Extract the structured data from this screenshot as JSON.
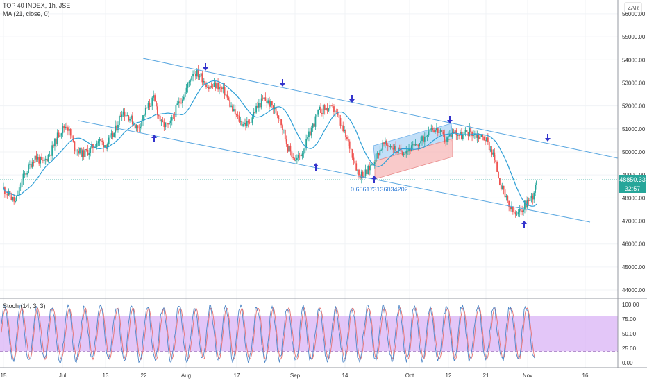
{
  "header": {
    "title": "TOP 40 INDEX, 1h, JSE",
    "ma_label": "MA (21, close, 0)",
    "currency": "ZAR"
  },
  "stoch_label": "Stoch (14, 3, 3)",
  "price_tag": "48850.33",
  "countdown_tag": "32:57",
  "fib_label": "0.656173136034202",
  "colors": {
    "up": "#26a69a",
    "down": "#ef5350",
    "ma": "#2e9fd6",
    "trendline": "#5aa7e0",
    "arrow": "#3333cc",
    "stoch_k": "#4f87c7",
    "stoch_d": "#e57373",
    "stoch_band": "#d9b3f5"
  },
  "chart_data": [
    {
      "type": "candlestick",
      "title": "TOP 40 INDEX, 1h, JSE",
      "y_ticks": [
        "44000.00",
        "45000.00",
        "46000.00",
        "47000.00",
        "48000.00",
        "49000.00",
        "50000.00",
        "51000.00",
        "52000.00",
        "53000.00",
        "54000.00",
        "55000.00",
        "56000.00"
      ],
      "ylim": [
        43700,
        56600
      ],
      "x_ticks": [
        "15",
        "Jul",
        "13",
        "22",
        "Aug",
        "17",
        "Sep",
        "14",
        "Oct",
        "12",
        "21",
        "Nov",
        "16"
      ],
      "last_price": 48850.33,
      "series": [
        {
          "type": "candles",
          "approx_close_path": [
            [
              0,
              48400
            ],
            [
              3,
              47800
            ],
            [
              5,
              48900
            ],
            [
              8,
              49800
            ],
            [
              10,
              49500
            ],
            [
              12,
              50000
            ],
            [
              14,
              50800
            ],
            [
              16,
              51200
            ],
            [
              18,
              50200
            ],
            [
              20,
              49900
            ],
            [
              22,
              50100
            ],
            [
              24,
              50500
            ],
            [
              26,
              50300
            ],
            [
              28,
              50800
            ],
            [
              30,
              51800
            ],
            [
              32,
              51500
            ],
            [
              34,
              51000
            ],
            [
              36,
              51800
            ],
            [
              38,
              52300
            ],
            [
              40,
              51200
            ],
            [
              42,
              51100
            ],
            [
              44,
              52000
            ],
            [
              46,
              52600
            ],
            [
              48,
              53500
            ],
            [
              50,
              53300
            ],
            [
              52,
              52800
            ],
            [
              54,
              52900
            ],
            [
              56,
              52600
            ],
            [
              58,
              51800
            ],
            [
              60,
              51300
            ],
            [
              62,
              51200
            ],
            [
              64,
              51900
            ],
            [
              66,
              52300
            ],
            [
              68,
              52000
            ],
            [
              70,
              51500
            ],
            [
              72,
              50200
            ],
            [
              74,
              49600
            ],
            [
              76,
              50100
            ],
            [
              78,
              51000
            ],
            [
              80,
              51800
            ],
            [
              82,
              51900
            ],
            [
              84,
              51800
            ],
            [
              86,
              50900
            ],
            [
              88,
              50100
            ],
            [
              90,
              49000
            ],
            [
              92,
              49100
            ],
            [
              94,
              49700
            ],
            [
              96,
              50300
            ],
            [
              98,
              50300
            ],
            [
              100,
              50000
            ],
            [
              102,
              50100
            ],
            [
              104,
              50200
            ],
            [
              106,
              50500
            ],
            [
              108,
              51100
            ],
            [
              110,
              50900
            ],
            [
              112,
              50500
            ],
            [
              114,
              50900
            ],
            [
              116,
              50700
            ],
            [
              118,
              50900
            ],
            [
              120,
              50700
            ],
            [
              122,
              50600
            ],
            [
              124,
              49900
            ],
            [
              126,
              48500
            ],
            [
              128,
              47600
            ],
            [
              130,
              47200
            ],
            [
              132,
              47700
            ],
            [
              134,
              48100
            ],
            [
              135,
              48850
            ]
          ]
        },
        {
          "name": "MA (21, close, 0)",
          "type": "line"
        }
      ]
    },
    {
      "type": "line",
      "title": "Stoch (14, 3, 3)",
      "y_ticks": [
        "0.00",
        "25.00",
        "50.00",
        "75.00",
        "100.00"
      ],
      "ylim": [
        -8,
        108
      ],
      "band": [
        20,
        80
      ]
    }
  ]
}
